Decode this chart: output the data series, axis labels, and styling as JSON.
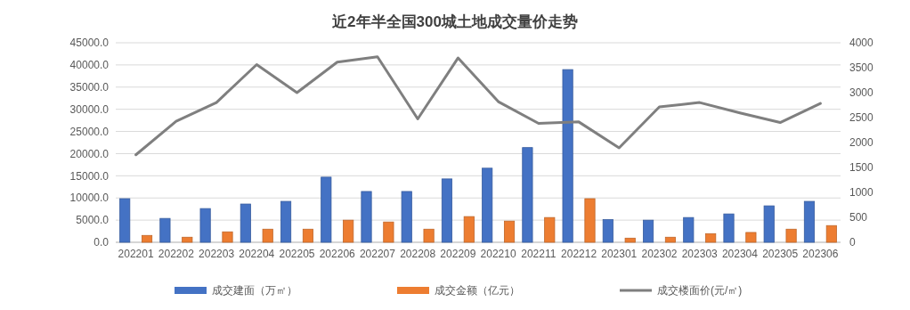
{
  "chart_data": {
    "type": "bar",
    "title": "近2年半全国300城土地成交量价走势",
    "categories": [
      "202201",
      "202202",
      "202203",
      "202204",
      "202205",
      "202206",
      "202207",
      "202208",
      "202209",
      "202210",
      "202211",
      "202212",
      "202301",
      "202302",
      "202303",
      "202304",
      "202305",
      "202306"
    ],
    "series": [
      {
        "name": "成交建面（万㎡）",
        "color": "#4472c4",
        "values": [
          9840,
          5390,
          7610,
          8630,
          9230,
          14690,
          11460,
          11460,
          14290,
          16710,
          21360,
          38950,
          5120,
          4990,
          5590,
          6400,
          8220,
          9230
        ]
      },
      {
        "name": "成交金额（亿元）",
        "color": "#ed7d31",
        "values": [
          1550,
          1150,
          2360,
          2960,
          2960,
          4990,
          4580,
          2960,
          5800,
          4780,
          5590,
          9840,
          940,
          1150,
          1950,
          2220,
          2960,
          3770
        ]
      },
      {
        "name": "成交楼面价(元/㎡)",
        "color": "#7f7f7f",
        "type": "line",
        "axis": "y2",
        "values": [
          1754,
          2425,
          2802,
          3563,
          3000,
          3611,
          3719,
          2473,
          3695,
          2820,
          2383,
          2413,
          1892,
          2713,
          2802,
          2593,
          2401,
          2784
        ]
      }
    ],
    "ylim": [
      0,
      45000
    ],
    "yticks": [
      {
        "value": 0,
        "label": "0.0"
      },
      {
        "value": 5000,
        "label": "5000.0"
      },
      {
        "value": 10000,
        "label": "10000.0"
      },
      {
        "value": 15000,
        "label": "15000.0"
      },
      {
        "value": 20000,
        "label": "20000.0"
      },
      {
        "value": 25000,
        "label": "25000.0"
      },
      {
        "value": 30000,
        "label": "30000.0"
      },
      {
        "value": 35000,
        "label": "35000.0"
      },
      {
        "value": 40000,
        "label": "40000.0"
      },
      {
        "value": 45000,
        "label": "45000.0"
      }
    ],
    "y2lim": [
      0,
      4000
    ],
    "y2ticks": [
      0,
      500,
      1000,
      1500,
      2000,
      2500,
      3000,
      3500,
      4000
    ],
    "grid": "y",
    "legend": "bottom",
    "marker": "none",
    "line_style": "solid"
  }
}
